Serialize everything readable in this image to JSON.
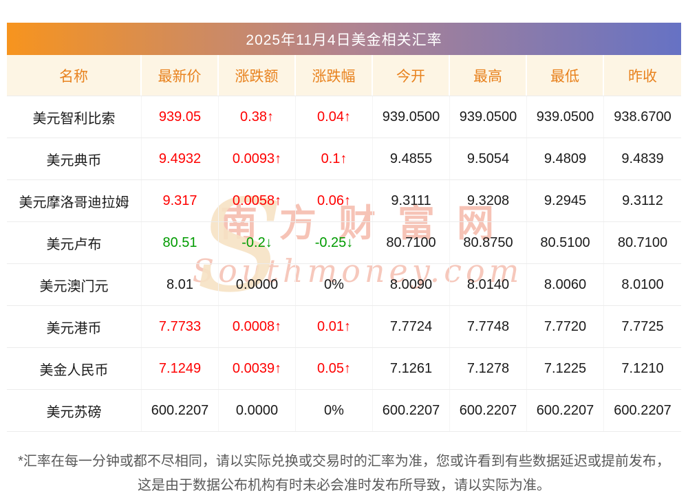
{
  "title": "2025年11月4日美金相关汇率",
  "table": {
    "headers": [
      "名称",
      "最新价",
      "涨跌额",
      "涨跌幅",
      "今开",
      "最高",
      "最低",
      "昨收"
    ],
    "rows": [
      {
        "name": "美元智利比索",
        "price": "939.05",
        "change": "0.38↑",
        "pct": "0.04↑",
        "open": "939.0500",
        "high": "939.0500",
        "low": "939.0500",
        "prev": "938.6700",
        "trend": "up"
      },
      {
        "name": "美元典币",
        "price": "9.4932",
        "change": "0.0093↑",
        "pct": "0.1↑",
        "open": "9.4855",
        "high": "9.5054",
        "low": "9.4809",
        "prev": "9.4839",
        "trend": "up"
      },
      {
        "name": "美元摩洛哥迪拉姆",
        "price": "9.317",
        "change": "0.0058↑",
        "pct": "0.06↑",
        "open": "9.3111",
        "high": "9.3208",
        "low": "9.2945",
        "prev": "9.3112",
        "trend": "up"
      },
      {
        "name": "美元卢布",
        "price": "80.51",
        "change": "-0.2↓",
        "pct": "-0.25↓",
        "open": "80.7100",
        "high": "80.8750",
        "low": "80.5100",
        "prev": "80.7100",
        "trend": "down"
      },
      {
        "name": "美元澳门元",
        "price": "8.01",
        "change": "0.0000",
        "pct": "0%",
        "open": "8.0090",
        "high": "8.0140",
        "low": "8.0060",
        "prev": "8.0100",
        "trend": "flat"
      },
      {
        "name": "美元港币",
        "price": "7.7733",
        "change": "0.0008↑",
        "pct": "0.01↑",
        "open": "7.7724",
        "high": "7.7748",
        "low": "7.7720",
        "prev": "7.7725",
        "trend": "up"
      },
      {
        "name": "美金人民币",
        "price": "7.1249",
        "change": "0.0039↑",
        "pct": "0.05↑",
        "open": "7.1261",
        "high": "7.1278",
        "low": "7.1225",
        "prev": "7.1210",
        "trend": "up"
      },
      {
        "name": "美元苏磅",
        "price": "600.2207",
        "change": "0.0000",
        "pct": "0%",
        "open": "600.2207",
        "high": "600.2207",
        "low": "600.2207",
        "prev": "600.2207",
        "trend": "flat"
      }
    ]
  },
  "watermark": {
    "logo": "S",
    "cn": "南方财富网",
    "en": "Southmoney.com"
  },
  "footnote": "*汇率在每一分钟或都不尽相同，请以实际兑换或交易时的汇率为准，您或许看到有些数据延迟或提前发布，这是由于数据公布机构有时未必会准时发布所导致，请以实际为准。",
  "colors": {
    "up": "#fe0000",
    "down": "#009b00",
    "flat": "#1a1a1a",
    "header_text": "#e8821e",
    "title_gradient_left": "#f7941e",
    "title_gradient_right": "#6672c4",
    "header_bg": "#fdf5e4"
  }
}
